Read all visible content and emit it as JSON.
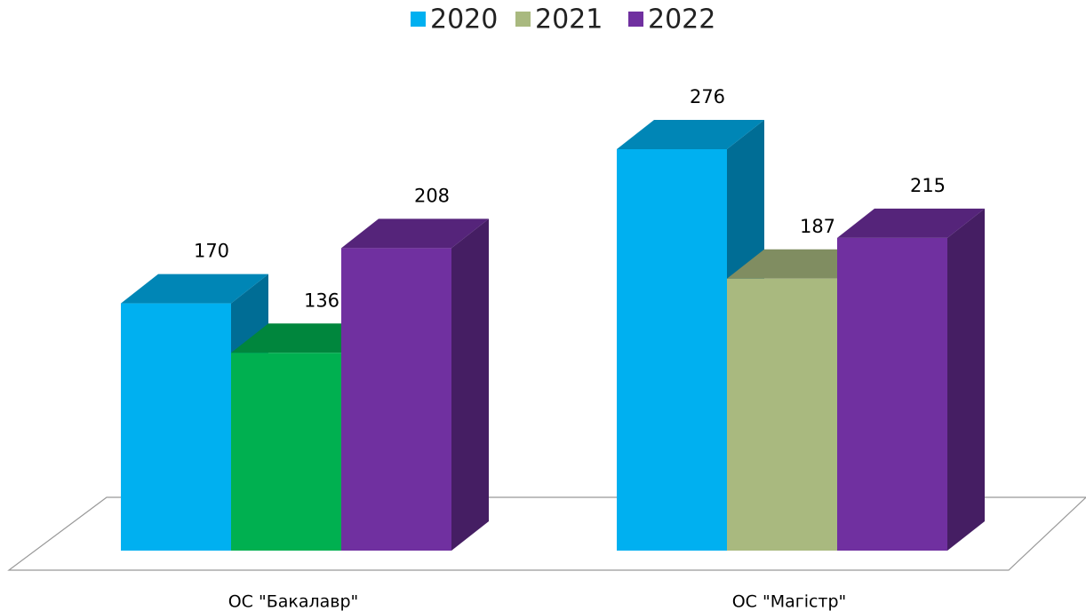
{
  "chart_data": {
    "type": "bar3d",
    "categories": [
      "ОС \"Бакалавр\"",
      "ОС \"Магістр\""
    ],
    "series": [
      {
        "name": "2020",
        "color": "#00b0f0",
        "values": [
          170,
          276
        ]
      },
      {
        "name": "2021",
        "color": "#a9b97f",
        "colors": [
          "#00b050",
          "#a9b97f"
        ],
        "values": [
          136,
          187
        ]
      },
      {
        "name": "2022",
        "color": "#7030a0",
        "values": [
          208,
          215
        ]
      }
    ],
    "legend": "top"
  }
}
